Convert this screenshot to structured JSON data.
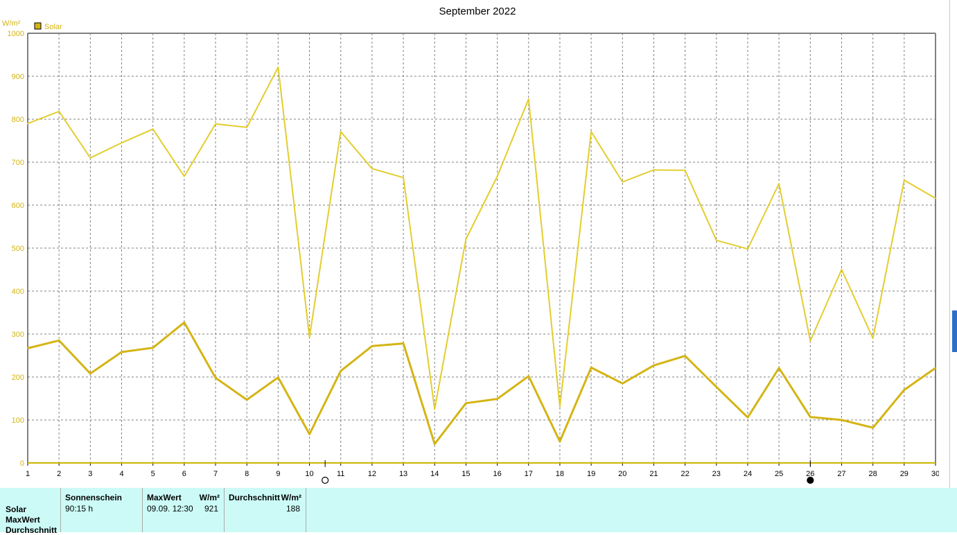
{
  "chart_data": {
    "type": "line",
    "title": "September 2022",
    "ylabel": "W/m²",
    "xlabel": "",
    "ylim": [
      0,
      1000
    ],
    "yticks": [
      0,
      100,
      200,
      300,
      400,
      500,
      600,
      700,
      800,
      900,
      1000
    ],
    "x": [
      1,
      2,
      3,
      4,
      5,
      6,
      7,
      8,
      9,
      10,
      11,
      12,
      13,
      14,
      15,
      16,
      17,
      18,
      19,
      20,
      21,
      22,
      23,
      24,
      25,
      26,
      27,
      28,
      29,
      30
    ],
    "grid": true,
    "legend": "top-left",
    "legend_entries": [
      "Solar"
    ],
    "series": [
      {
        "name": "Solar",
        "role": "max",
        "color": "#e3cd2e",
        "values": [
          790,
          818,
          710,
          745,
          777,
          667,
          789,
          781,
          921,
          292,
          771,
          685,
          664,
          125,
          521,
          667,
          847,
          131,
          771,
          654,
          682,
          681,
          518,
          498,
          650,
          284,
          450,
          290,
          658,
          616
        ]
      },
      {
        "name": "",
        "role": "average",
        "color": "#d4b413",
        "values": [
          267,
          285,
          208,
          258,
          268,
          327,
          198,
          147,
          199,
          67,
          214,
          272,
          278,
          44,
          139,
          149,
          202,
          50,
          222,
          185,
          227,
          249,
          177,
          106,
          221,
          107,
          100,
          82,
          170,
          221
        ]
      }
    ],
    "markers": [
      {
        "x": 10.5,
        "symbol": "open-circle"
      },
      {
        "x": 26,
        "symbol": "filled-circle"
      }
    ]
  },
  "colors": {
    "axis_text": "#d4b413",
    "grid": "#808080",
    "panel_bg": "#ccfbf7",
    "legend_fill": "#d4b413"
  },
  "legend": {
    "swatch_icon": "legend-square-icon",
    "label": "Solar"
  },
  "summary": {
    "row_labels": [
      "Solar",
      "MaxWert",
      "Durchschnitt"
    ],
    "sunshine": {
      "header": "Sonnenschein",
      "value": "90:15 h"
    },
    "max": {
      "header": "MaxWert",
      "unit": "W/m²",
      "date": "09.09.  12:30",
      "value": "921"
    },
    "average": {
      "header": "Durchschnitt",
      "unit": "W/m²",
      "value": "188"
    }
  }
}
